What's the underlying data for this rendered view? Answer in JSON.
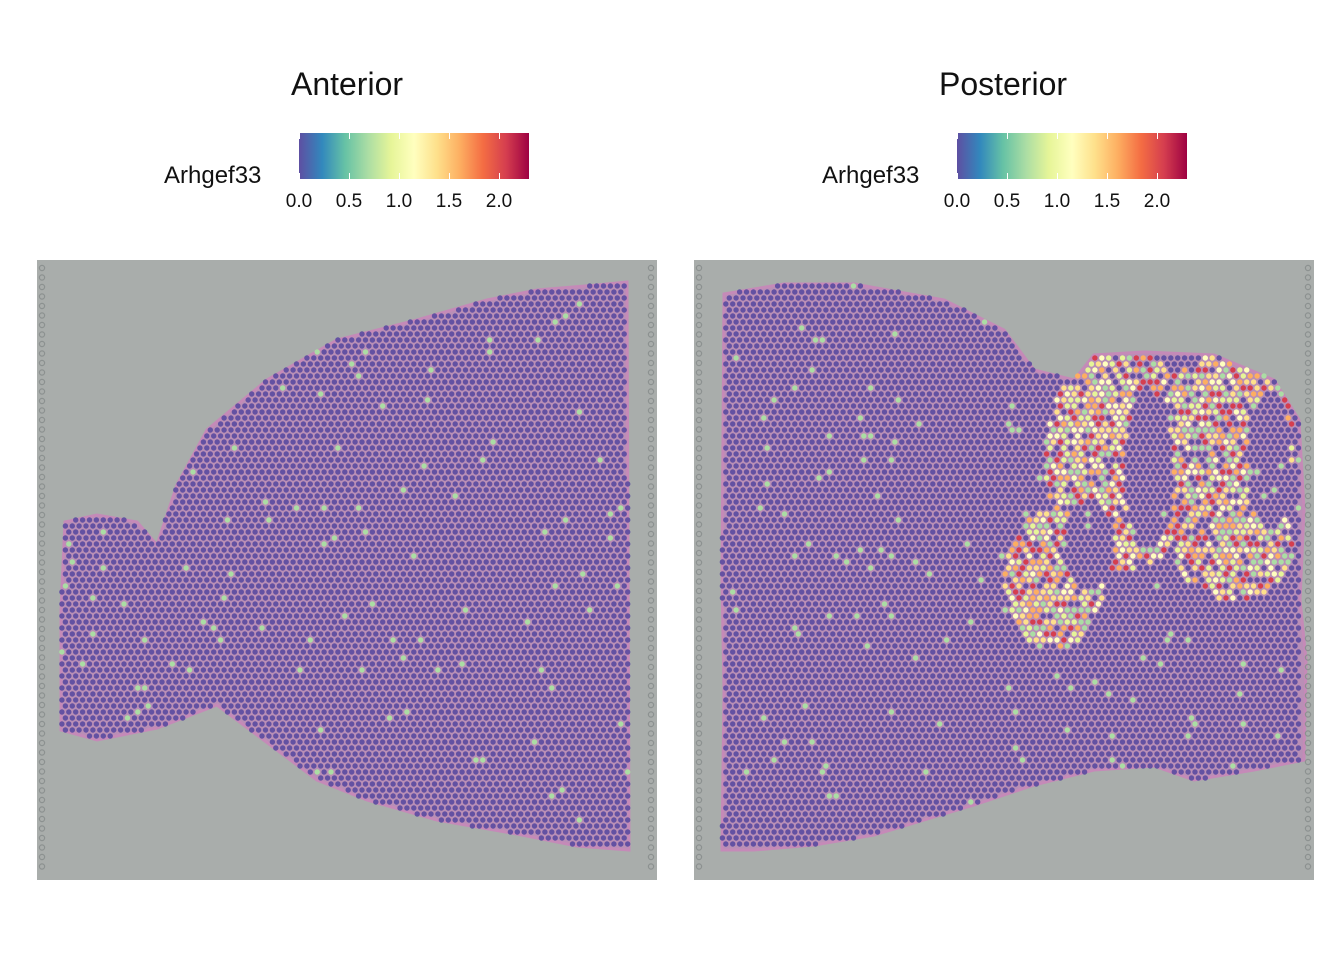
{
  "chart_data": [
    {
      "type": "scatter",
      "title": "Anterior",
      "legend_title": "Arhgef33",
      "colorscale": [
        "#5E4FA2",
        "#3288BD",
        "#66C2A5",
        "#ABDDA4",
        "#E6F598",
        "#FFFFBF",
        "#FEE08B",
        "#FDAE61",
        "#F46D43",
        "#D53E4F",
        "#9E0142"
      ],
      "color_range": [
        0,
        2.3
      ],
      "ticks": [
        "0.0",
        "0.5",
        "1.0",
        "1.5",
        "2.0"
      ],
      "tick_values": [
        0,
        0.5,
        1.0,
        1.5,
        2.0
      ],
      "legend_placement": "top",
      "background": "tissue-image",
      "spots_summary": "mostly 0.0 with sparse ~0.7 spots",
      "sparse_value": 0.7
    },
    {
      "type": "scatter",
      "title": "Posterior",
      "legend_title": "Arhgef33",
      "colorscale": [
        "#5E4FA2",
        "#3288BD",
        "#66C2A5",
        "#ABDDA4",
        "#E6F598",
        "#FFFFBF",
        "#FEE08B",
        "#FDAE61",
        "#F46D43",
        "#D53E4F",
        "#9E0142"
      ],
      "color_range": [
        0,
        2.3
      ],
      "ticks": [
        "0.0",
        "0.5",
        "1.0",
        "1.5",
        "2.0"
      ],
      "tick_values": [
        0,
        0.5,
        1.0,
        1.5,
        2.0
      ],
      "legend_placement": "top",
      "background": "tissue-image",
      "hotspot_region": "cerebellum",
      "hotspot_values": [
        0.7,
        1.0,
        1.2,
        1.5,
        1.8,
        2.2
      ],
      "sparse_value": 0.7
    }
  ]
}
